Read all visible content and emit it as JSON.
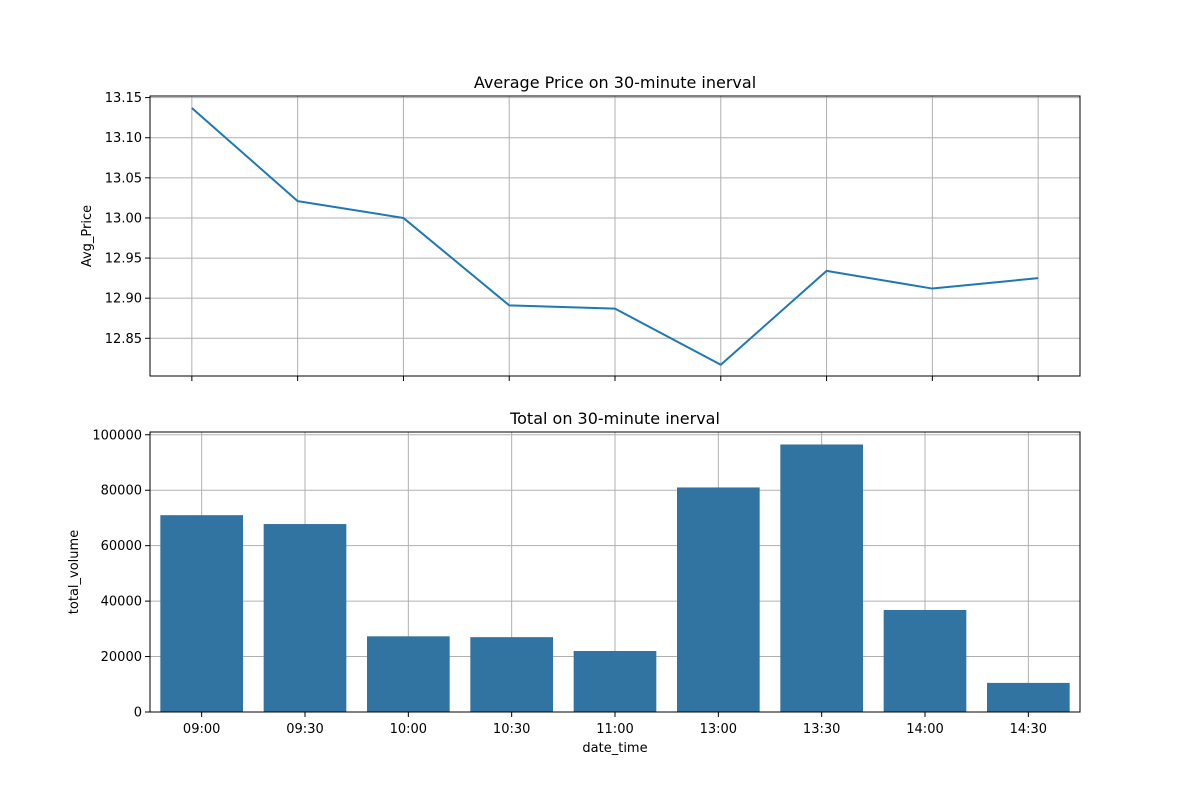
{
  "chart_data": [
    {
      "type": "line",
      "title": "Average Price on 30-minute inerval",
      "xlabel": "",
      "ylabel": "Avg_Price",
      "categories": [
        "09:00",
        "09:30",
        "10:00",
        "10:30",
        "11:00",
        "13:00",
        "13:30",
        "14:00",
        "14:30"
      ],
      "series": [
        {
          "values": [
            13.137,
            13.021,
            13.0,
            12.891,
            12.887,
            12.817,
            12.934,
            12.912,
            12.925
          ]
        }
      ],
      "ylim": [
        12.803,
        13.152
      ],
      "yticks": [
        "12.85",
        "12.90",
        "12.95",
        "13.00",
        "13.05",
        "13.10",
        "13.15"
      ],
      "show_xtick_labels": false,
      "grid": true,
      "color": "#1f77b4"
    },
    {
      "type": "bar",
      "title": "Total on 30-minute inerval",
      "xlabel": "date_time",
      "ylabel": "total_volume",
      "categories": [
        "09:00",
        "09:30",
        "10:00",
        "10:30",
        "11:00",
        "13:00",
        "13:30",
        "14:00",
        "14:30"
      ],
      "series": [
        {
          "values": [
            71000,
            67800,
            27300,
            27000,
            22000,
            81000,
            96500,
            36800,
            10500
          ]
        }
      ],
      "ylim": [
        0,
        101000
      ],
      "yticks": [
        "0",
        "20000",
        "40000",
        "60000",
        "80000",
        "100000"
      ],
      "grid": true,
      "color": "#3274a1"
    }
  ]
}
